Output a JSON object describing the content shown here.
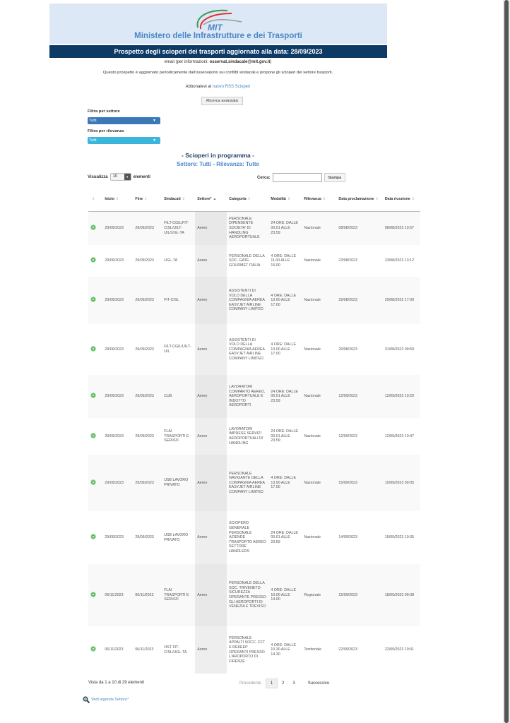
{
  "header": {
    "logo_text": "MIT",
    "ministry": "Ministero delle Infrastrutture e dei Trasporti",
    "title": "Prospetto degli scioperi dei trasporti aggiornato alla data: 28/09/2023"
  },
  "info": {
    "email_prefix": "email (per informazioni: ",
    "email": "osservat.sindacale@mit.gov.it",
    "email_suffix": ")",
    "description": "Questo prospetto è aggiornato periodicamente dall'osservatorio sui conflitti sindacali e propone gli scioperi del settore trasporti.",
    "rss_prefix": "Abbonatevi al ",
    "rss_link": "nuovo RSS Scioperi",
    "advanced_search": "Ricerca avanzata"
  },
  "filters": {
    "sector_label": "Filtra per settore",
    "sector_value": "Tutti",
    "relevance_label": "Filtra per rilevanza",
    "relevance_value": "Tutti",
    "sector_color": "#3a78b8",
    "relevance_color": "#3bb5dc"
  },
  "section": {
    "title": "- Scioperi in programma -",
    "subtitle": "Settore: Tutti - Rilevanza: Tutte"
  },
  "controls": {
    "show_label": "Visualizza",
    "show_value": "10",
    "elements_label": "elementi",
    "search_label": "Cerca:",
    "search_value": "",
    "print_label": "Stampa"
  },
  "table": {
    "columns": [
      "",
      "Inizio",
      "Fine",
      "Sindacati",
      "Settore*",
      "Categoria",
      "Modalità",
      "Rilevanza",
      "Data proclamazione",
      "Data ricezione"
    ],
    "sorted_column": "Settore*",
    "rows": [
      [
        "29/09/2023",
        "29/09/2023",
        "FILT-CGIL/FIT-CISL/UILT-UIL/UGL-TA",
        "Aereo",
        "PERSONALE DIPENDENTE SOCIETA' DI HANDLING AEROPORTUALE",
        "24 ORE: DALLE 00.01 ALLE 23.59",
        "Nazionale",
        "08/08/2023",
        "08/08/2023 10:57"
      ],
      [
        "29/09/2023",
        "29/09/2023",
        "UGL-TA",
        "Aereo",
        "PERSONALE DELLA SOC. GATE GOURMET ITALIA",
        "4 ORE: DALLE 11.00 ALLE 15.00",
        "Nazionale",
        "23/08/2023",
        "23/08/2023 13:12"
      ],
      [
        "29/09/2023",
        "29/09/2023",
        "FIT-CISL",
        "Aereo",
        "ASSISTENTI DI VOLO DELLA COMPAGNIA AEREA EASYJET AIRLINE COMPANY LIMITED",
        "4 ORE: DALLE 13.00 ALLE 17.00",
        "Nazionale",
        "29/08/2023",
        "29/08/2023 17:00"
      ],
      [
        "29/09/2023",
        "29/09/2023",
        "FILT-CGIL/UILT-UIL",
        "Aereo",
        "ASSISTENTI DI VOLO DELLA COMPAGNIA AEREA EASYJET AIRLINE COMPANY LIMITED",
        "4 ORE: DALLE 13.00 ALLE 17.00",
        "Nazionale",
        "29/08/2023",
        "31/08/2023 09:59"
      ],
      [
        "29/09/2023",
        "29/09/2023",
        "CUB",
        "Aereo",
        "LAVORATORI COMPARTO AEREO, AEROPORTUALE E INDOTTO AEROPORTI",
        "24 ORE: DALLE 00.01 ALLE 23.59",
        "Nazionale",
        "12/09/2023",
        "12/09/2023 10:29"
      ],
      [
        "29/09/2023",
        "29/09/2023",
        "FLAI TRASPORTI E SERVIZI",
        "Aereo",
        "LAVORATORI IMPRESE SERVIZI AEROPORTUALI DI HANDLING",
        "24 ORE: DALLE 00.01 ALLE 23.59",
        "Nazionale",
        "12/09/2023",
        "12/09/2023 10:47"
      ],
      [
        "29/09/2023",
        "29/09/2023",
        "USB LAVORO PRIVATO",
        "Aereo",
        "PERSONALE NAVIGANTE DELLA COMPAGNIA AEREA EASYJET AIRLINE COMPANY LIMITED",
        "4 ORE: DALLE 13.00 ALLE 17.00",
        "Nazionale",
        "15/09/2023",
        "15/09/2023 09:05"
      ],
      [
        "29/09/2023",
        "29/09/2023",
        "USB LAVORO PRIVATO",
        "Aereo",
        "SCIOPERO GENERALE PERSONALE AZIENDE TRASPORTO AEREO SETTORE HANDLERS",
        "24 ORE: DALLE 00.01 ALLE 23.59",
        "Nazionale",
        "14/09/2023",
        "15/09/2023 19:35"
      ],
      [
        "06/11/2023",
        "06/11/2023",
        "FLAI TRASPORTI E SERVIZI",
        "Aereo",
        "PERSONALE DELLA SOC. TRIVENETO SICUREZZA OPERANTE PRESSO GLI AEROPORTI DI VENEZIA E TREVISO",
        "4 ORE: DALLE 10.00 ALLE 14.00",
        "Regionale",
        "15/09/2023",
        "18/09/2023 09:08"
      ],
      [
        "06/11/2023",
        "06/11/2023",
        "OST FIT-CISL/UGL-TA",
        "Aereo",
        "PERSONALE APPALTI SOCC. CFT E REKEEP OPERANTI PRESSO L'AROPORTO DI FIRENZE",
        "4 ORE: DALLE 10.30 ALLE 14.30",
        "Territoriale",
        "22/09/2023",
        "22/09/2023 10:01"
      ]
    ]
  },
  "footer": {
    "info": "Vista da 1 a 10 di 29 elementi",
    "prev": "Precedente",
    "pages": [
      "1",
      "2",
      "3"
    ],
    "current_page": "1",
    "next": "Successivo",
    "legend_link": "Vedi legenda Settore*"
  }
}
